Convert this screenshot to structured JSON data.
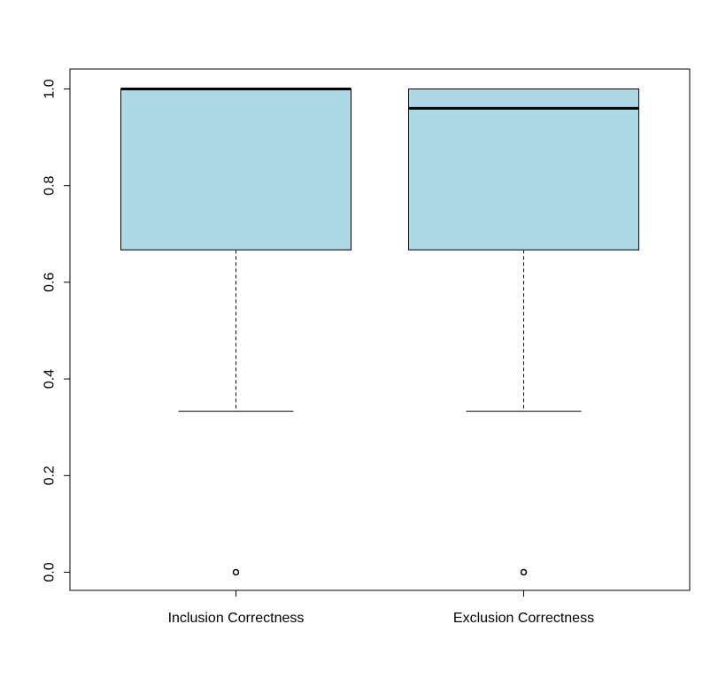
{
  "chart_data": {
    "type": "boxplot",
    "title": "",
    "xlabel": "",
    "ylabel": "",
    "ylim": [
      0,
      1
    ],
    "yticks": [
      0.0,
      0.2,
      0.4,
      0.6,
      0.8,
      1.0
    ],
    "ytick_labels": [
      "0.0",
      "0.2",
      "0.4",
      "0.6",
      "0.8",
      "1.0"
    ],
    "categories": [
      "Inclusion Correctness",
      "Exclusion Correctness"
    ],
    "boxes": [
      {
        "category": "Inclusion Correctness",
        "min": 0.333,
        "q1": 0.667,
        "median": 1.0,
        "q3": 1.0,
        "max": 1.0,
        "outliers": [
          0.0
        ]
      },
      {
        "category": "Exclusion Correctness",
        "min": 0.333,
        "q1": 0.667,
        "median": 0.96,
        "q3": 1.0,
        "max": 1.0,
        "outliers": [
          0.0
        ]
      }
    ],
    "box_color": "#ADD8E6",
    "grid": false
  }
}
